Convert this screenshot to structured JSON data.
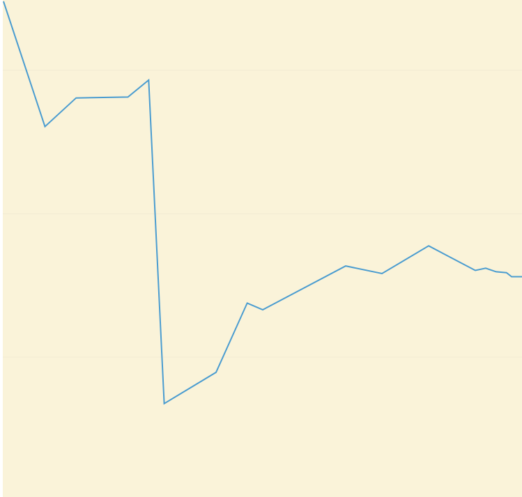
{
  "colors": {
    "plot_background": "#FAF3D9",
    "gridline": "#F2EBD3",
    "line": "#4A9CD0"
  },
  "chart_data": {
    "type": "line",
    "title": "",
    "xlabel": "",
    "ylabel": "",
    "grid": true,
    "legend": "none",
    "xlim": [
      0,
      100
    ],
    "ylim": [
      0,
      100
    ],
    "x": [
      0,
      8,
      14,
      24,
      28,
      31,
      41,
      47,
      50,
      66,
      73,
      82,
      91,
      93,
      95,
      97,
      98,
      100
    ],
    "series": [
      {
        "values": [
          100,
          72,
          78.4,
          78.6,
          82.4,
          10,
          17,
          32.5,
          31,
          40.8,
          39.1,
          45.3,
          39.8,
          40.3,
          39.5,
          39.3,
          38.4,
          38.4
        ]
      }
    ]
  }
}
